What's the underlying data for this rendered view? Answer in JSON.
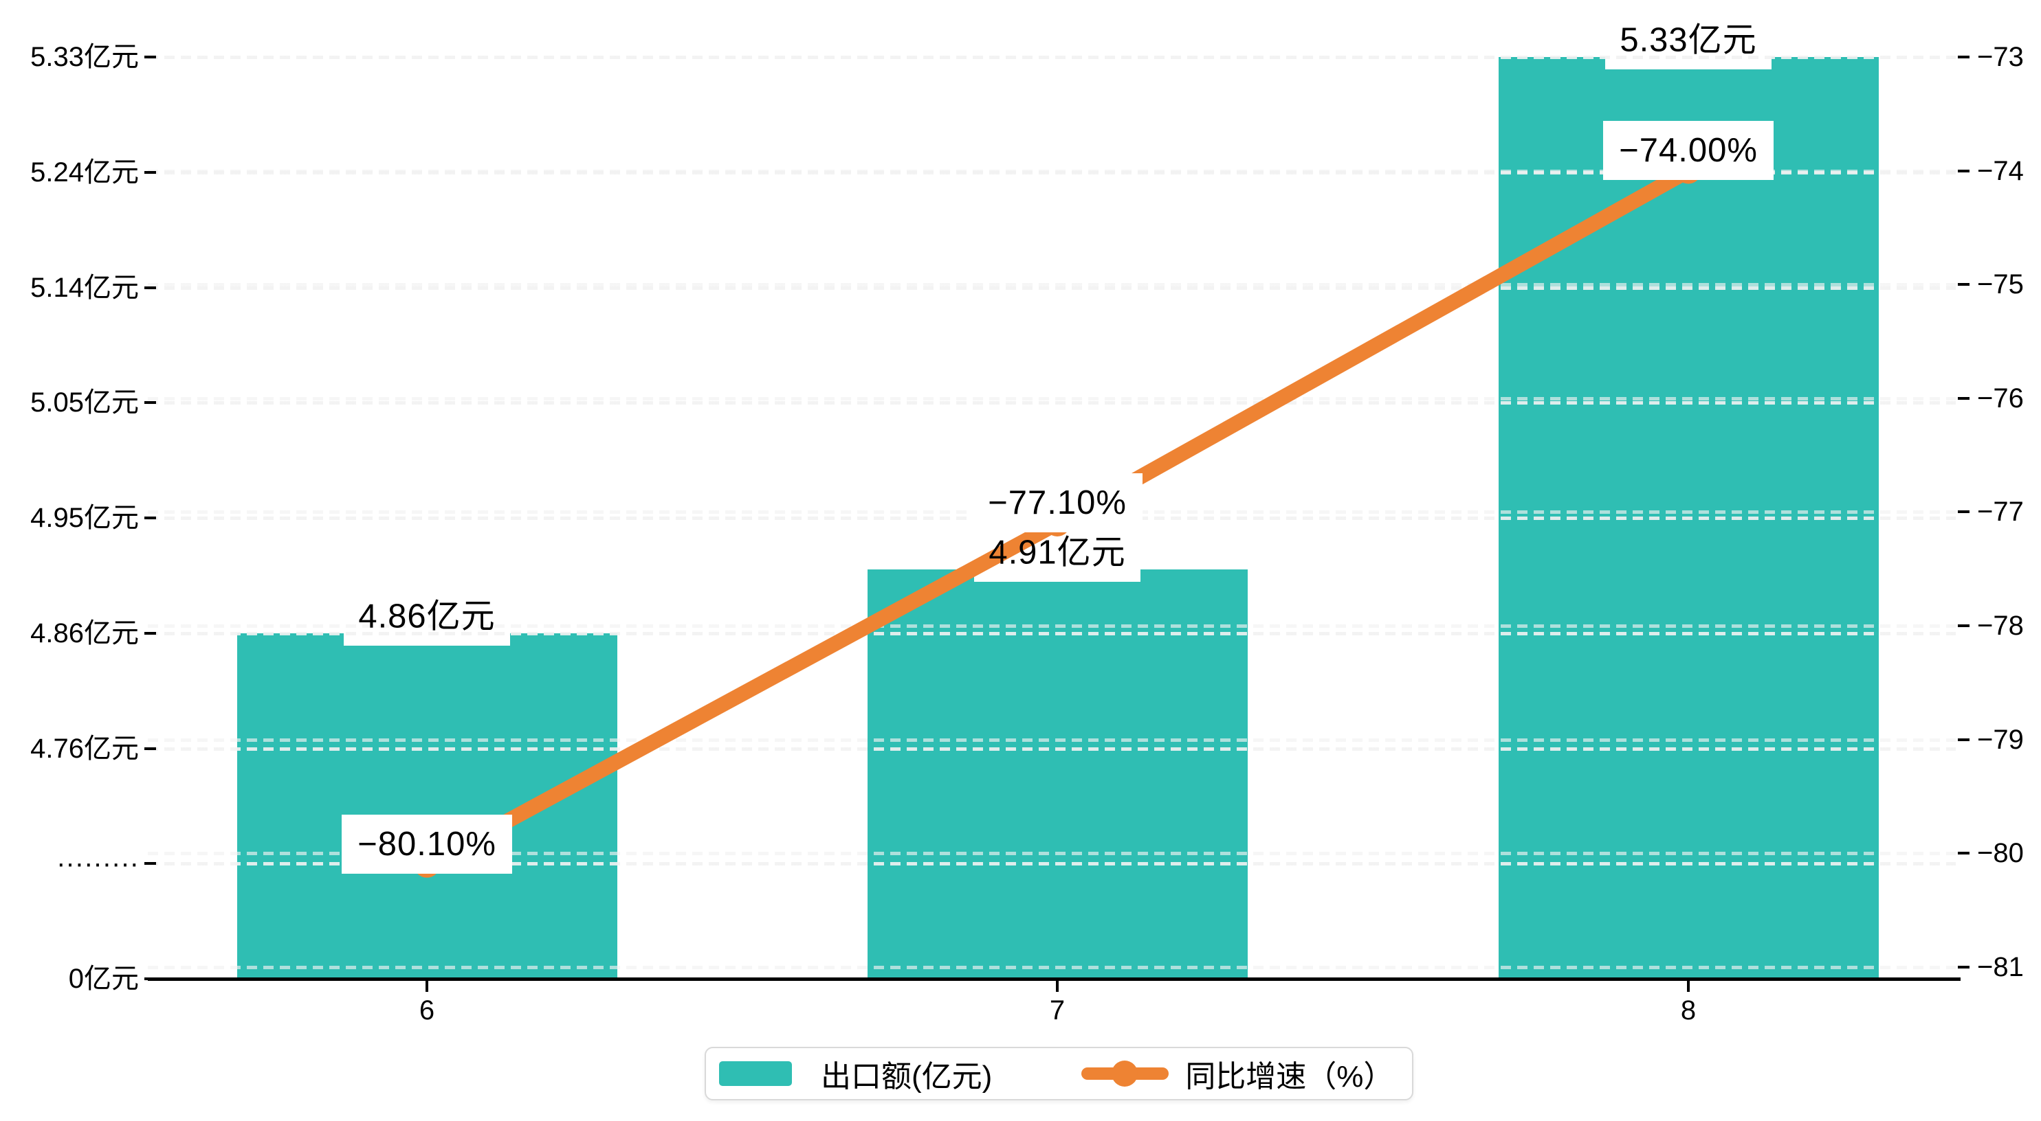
{
  "chart_data": {
    "type": "bar",
    "subtype": "bar+line dual axis with broken left axis",
    "categories": [
      "6",
      "7",
      "8"
    ],
    "series": [
      {
        "name": "出口额(亿元)",
        "type": "bar",
        "values": [
          4.86,
          4.91,
          5.33
        ],
        "data_labels": [
          "4.86亿元",
          "4.91亿元",
          "5.33亿元"
        ],
        "color": "#2FBEB3"
      },
      {
        "name": "同比增速（%）",
        "type": "line",
        "values": [
          -80.1,
          -77.1,
          -74.0
        ],
        "data_labels": [
          "−80.10%",
          "−77.10%",
          "−74.00%"
        ],
        "color": "#EE8333"
      }
    ],
    "left_axis": {
      "tick_labels": [
        "5.33亿元",
        "5.24亿元",
        "5.14亿元",
        "5.05亿元",
        "4.95亿元",
        "4.86亿元",
        "4.76亿元",
        "·········",
        "0亿元"
      ],
      "broken": true,
      "unit": "亿元"
    },
    "right_axis": {
      "tick_labels": [
        "−73",
        "−74",
        "−75",
        "−76",
        "−77",
        "−78",
        "−79",
        "−80",
        "−81"
      ],
      "tick_values": [
        -73,
        -74,
        -75,
        -76,
        -77,
        -78,
        -79,
        -80,
        -81
      ],
      "range": [
        -81,
        -73
      ]
    },
    "grid": "dashed",
    "legend_position": "bottom-center",
    "background": "#ffffff"
  },
  "legend": {
    "items": [
      {
        "label": "出口额(亿元)",
        "marker": "bar-swatch"
      },
      {
        "label": "同比增速（%）",
        "marker": "line-dot-swatch"
      }
    ]
  },
  "colors": {
    "bar": "#2FBEB3",
    "line": "#EE8333",
    "gridline": "#f2f2f2",
    "axis": "#000000",
    "label_box": "#ffffff",
    "legend_border": "#d9d9d9"
  }
}
